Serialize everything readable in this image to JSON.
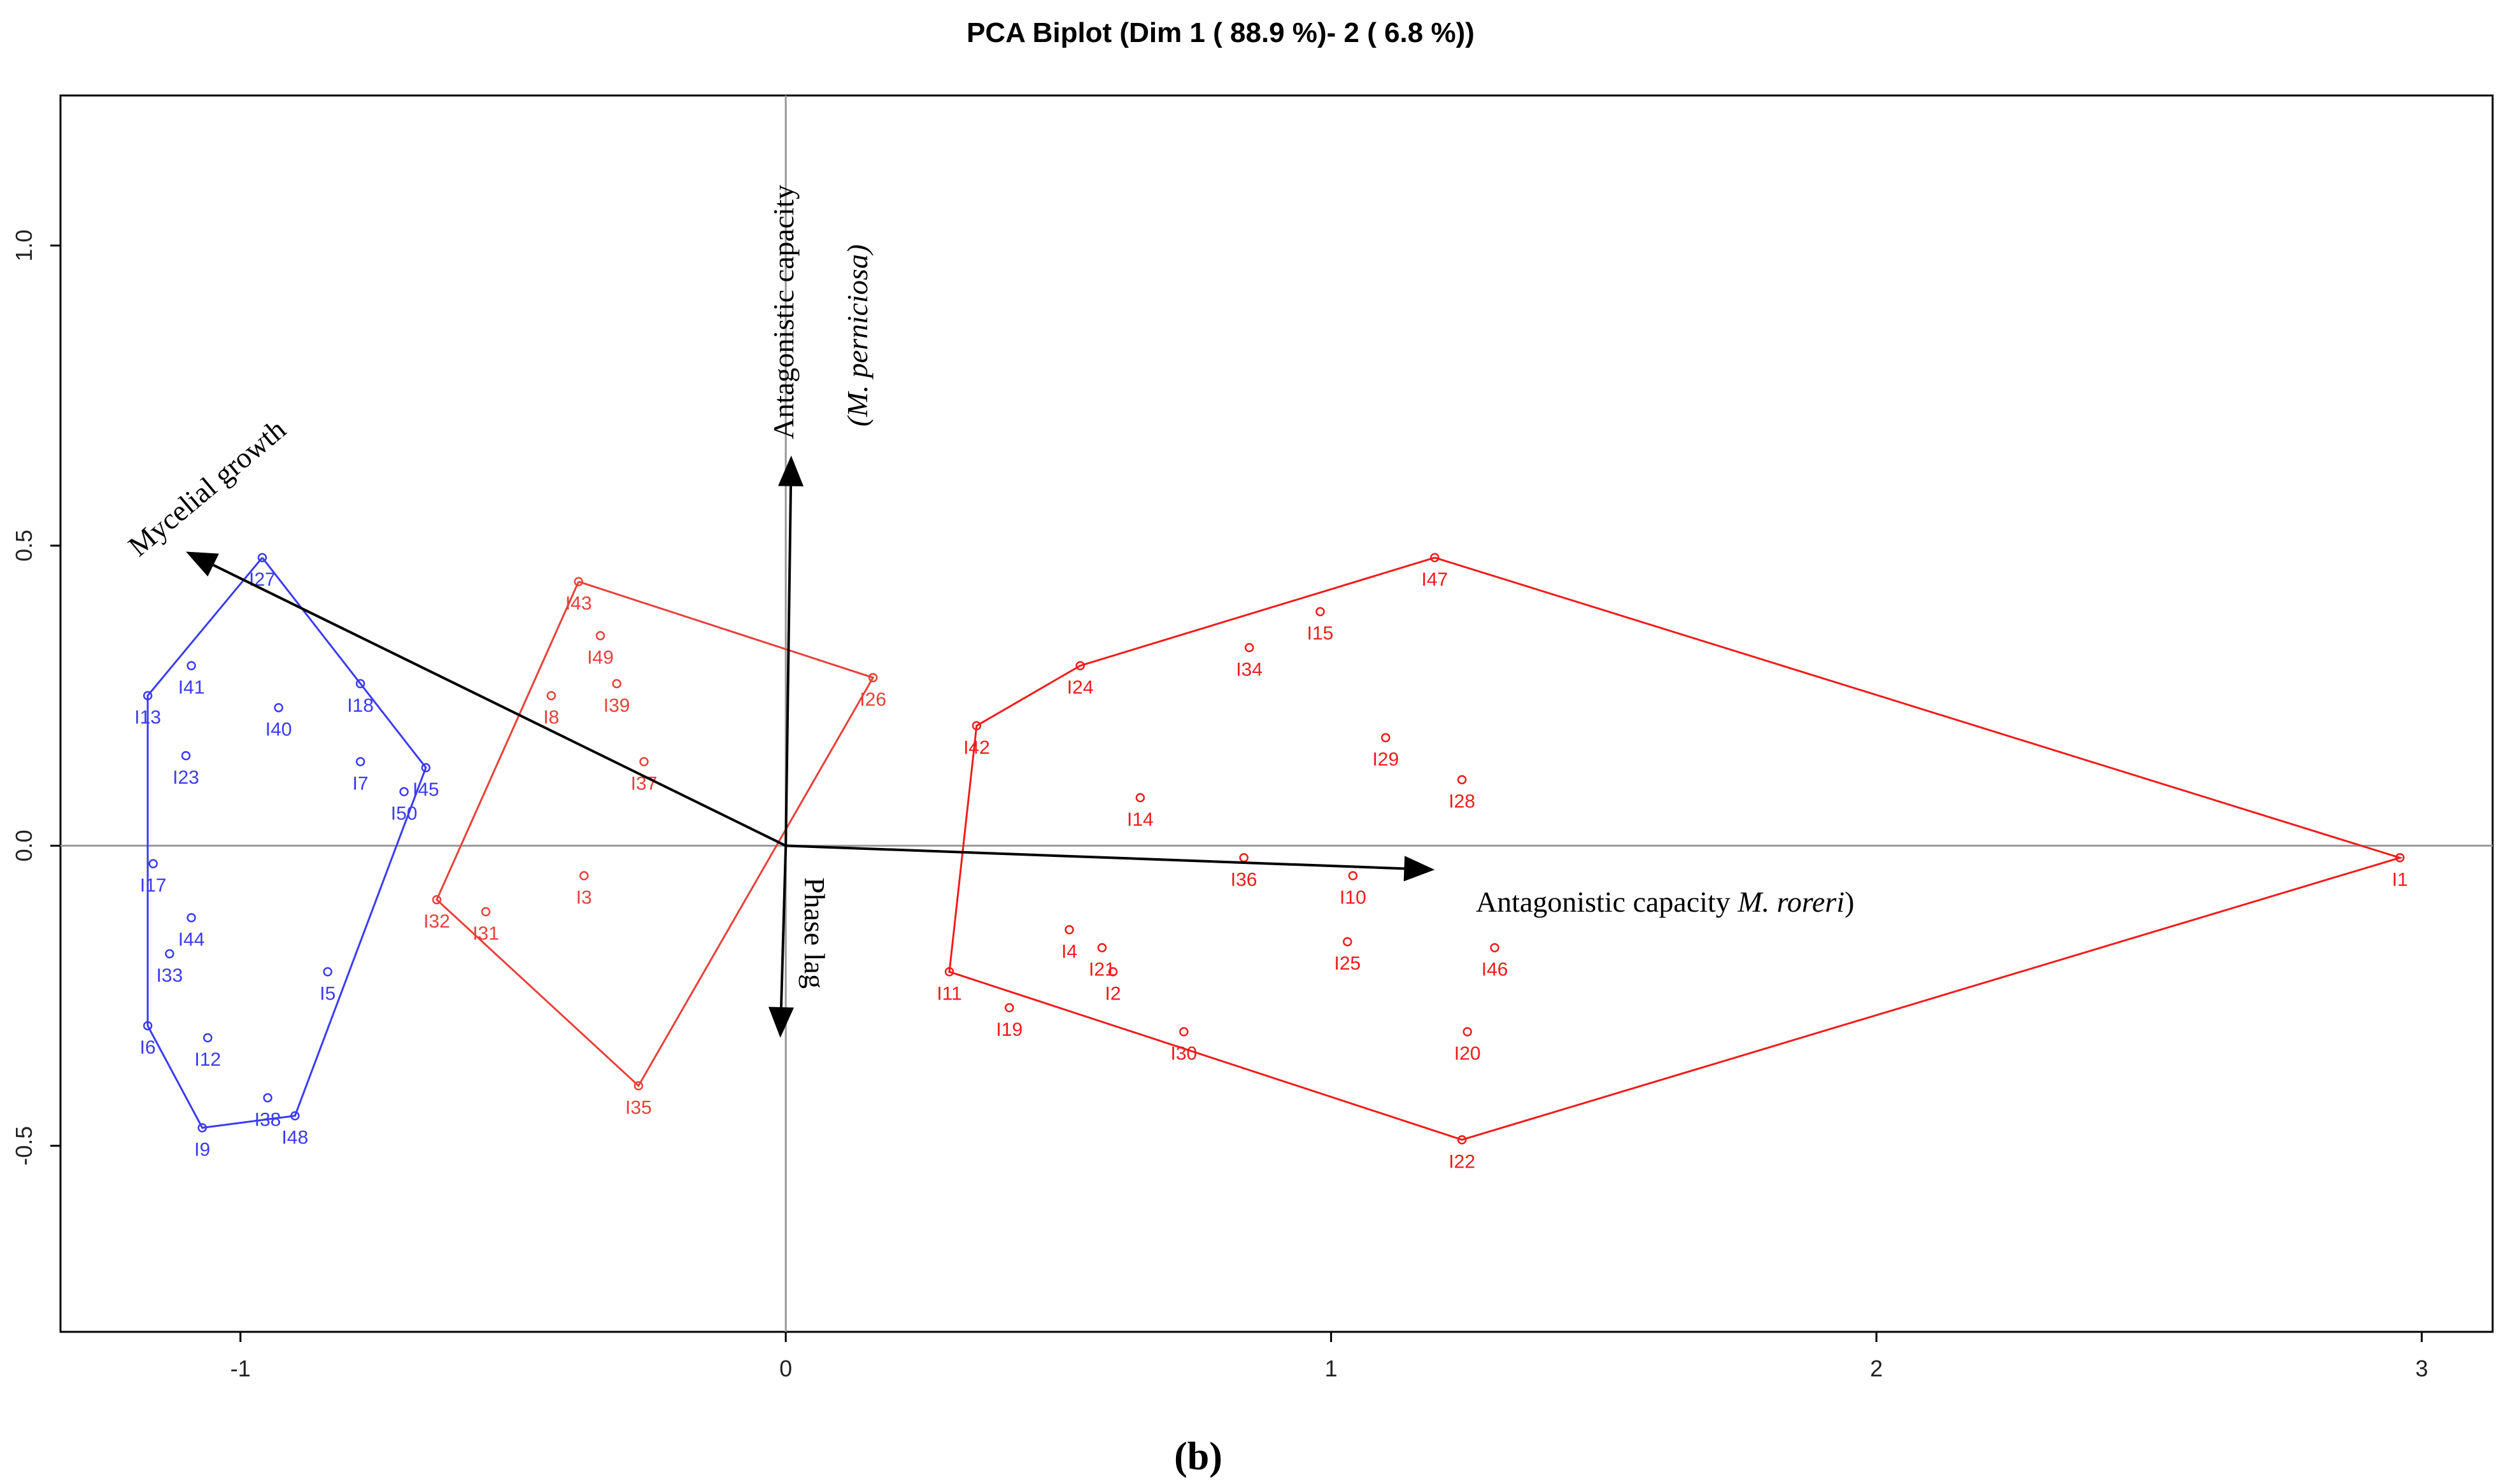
{
  "chart_data": {
    "type": "scatter",
    "title": "PCA Biplot (Dim 1 ( 88.9 %)- 2 ( 6.8 %))",
    "panel_label": "(b)",
    "xlabel": "",
    "ylabel": "",
    "xlim": [
      -1.33,
      3.13
    ],
    "ylim": [
      -0.81,
      1.25
    ],
    "x_ticks": [
      -1,
      0,
      1,
      2,
      3
    ],
    "y_ticks": [
      -0.5,
      0.0,
      0.5,
      1.0
    ],
    "x_tick_labels": [
      "-1",
      "0",
      "1",
      "2",
      "3"
    ],
    "y_tick_labels": [
      "-0.5",
      "0.0",
      "0.5",
      "1.0"
    ],
    "colors": {
      "group1": "#3b3bf2",
      "group2": "#e8403a",
      "group3": "#f21b1b",
      "axis_lines": "#999999",
      "arrows": "#000000"
    },
    "groups": [
      {
        "name": "group1",
        "points": [
          {
            "label": "I27",
            "x": -0.96,
            "y": 0.48
          },
          {
            "label": "I41",
            "x": -1.09,
            "y": 0.3
          },
          {
            "label": "I13",
            "x": -1.17,
            "y": 0.25
          },
          {
            "label": "I40",
            "x": -0.93,
            "y": 0.23
          },
          {
            "label": "I18",
            "x": -0.78,
            "y": 0.27
          },
          {
            "label": "I23",
            "x": -1.1,
            "y": 0.15
          },
          {
            "label": "I7",
            "x": -0.78,
            "y": 0.14
          },
          {
            "label": "I45",
            "x": -0.66,
            "y": 0.13
          },
          {
            "label": "I50",
            "x": -0.7,
            "y": 0.09
          },
          {
            "label": "I17",
            "x": -1.16,
            "y": -0.03
          },
          {
            "label": "I44",
            "x": -1.09,
            "y": -0.12
          },
          {
            "label": "I33",
            "x": -1.13,
            "y": -0.18
          },
          {
            "label": "I5",
            "x": -0.84,
            "y": -0.21
          },
          {
            "label": "I6",
            "x": -1.17,
            "y": -0.3
          },
          {
            "label": "I12",
            "x": -1.06,
            "y": -0.32
          },
          {
            "label": "I38",
            "x": -0.95,
            "y": -0.42
          },
          {
            "label": "I48",
            "x": -0.9,
            "y": -0.45
          },
          {
            "label": "I9",
            "x": -1.07,
            "y": -0.47
          }
        ],
        "hull": [
          "I27",
          "I45",
          "I48",
          "I9",
          "I6",
          "I13",
          "I27"
        ]
      },
      {
        "name": "group2",
        "points": [
          {
            "label": "I43",
            "x": -0.38,
            "y": 0.44
          },
          {
            "label": "I49",
            "x": -0.34,
            "y": 0.35
          },
          {
            "label": "I39",
            "x": -0.31,
            "y": 0.27
          },
          {
            "label": "I8",
            "x": -0.43,
            "y": 0.25
          },
          {
            "label": "I26",
            "x": 0.16,
            "y": 0.28
          },
          {
            "label": "I37",
            "x": -0.26,
            "y": 0.14
          },
          {
            "label": "I3",
            "x": -0.37,
            "y": -0.05
          },
          {
            "label": "I32",
            "x": -0.64,
            "y": -0.09
          },
          {
            "label": "I31",
            "x": -0.55,
            "y": -0.11
          },
          {
            "label": "I35",
            "x": -0.27,
            "y": -0.4
          }
        ],
        "hull": [
          "I43",
          "I26",
          "I35",
          "I32",
          "I43"
        ]
      },
      {
        "name": "group3",
        "points": [
          {
            "label": "I47",
            "x": 1.19,
            "y": 0.48
          },
          {
            "label": "I15",
            "x": 0.98,
            "y": 0.39
          },
          {
            "label": "I34",
            "x": 0.85,
            "y": 0.33
          },
          {
            "label": "I24",
            "x": 0.54,
            "y": 0.3
          },
          {
            "label": "I42",
            "x": 0.35,
            "y": 0.2
          },
          {
            "label": "I29",
            "x": 1.1,
            "y": 0.18
          },
          {
            "label": "I28",
            "x": 1.24,
            "y": 0.11
          },
          {
            "label": "I14",
            "x": 0.65,
            "y": 0.08
          },
          {
            "label": "I36",
            "x": 0.84,
            "y": -0.02
          },
          {
            "label": "I10",
            "x": 1.04,
            "y": -0.05
          },
          {
            "label": "I1",
            "x": 2.96,
            "y": -0.02
          },
          {
            "label": "I4",
            "x": 0.52,
            "y": -0.14
          },
          {
            "label": "I21",
            "x": 0.58,
            "y": -0.17
          },
          {
            "label": "I2",
            "x": 0.6,
            "y": -0.21
          },
          {
            "label": "I25",
            "x": 1.03,
            "y": -0.16
          },
          {
            "label": "I46",
            "x": 1.3,
            "y": -0.17
          },
          {
            "label": "I11",
            "x": 0.3,
            "y": -0.21
          },
          {
            "label": "I19",
            "x": 0.41,
            "y": -0.27
          },
          {
            "label": "I30",
            "x": 0.73,
            "y": -0.31
          },
          {
            "label": "I20",
            "x": 1.25,
            "y": -0.31
          },
          {
            "label": "I22",
            "x": 1.24,
            "y": -0.49
          }
        ],
        "hull": [
          "I47",
          "I1",
          "I22",
          "I11",
          "I42",
          "I24",
          "I47"
        ]
      }
    ],
    "variables": [
      {
        "name": "Antagonistic capacity (M. roreri)",
        "text": "Antagonistic capacity ",
        "italic": "M. roreri",
        "x": 1.19,
        "y": -0.04
      },
      {
        "name": "Antagonistic capacity (M. perniciosa)",
        "text": "Antagonistic capacity",
        "italic": "(M. perniciosa)",
        "x": 0.01,
        "y": 0.65
      },
      {
        "name": "Mycelial growth",
        "text": "Mycelial growth",
        "x": -1.1,
        "y": 0.49
      },
      {
        "name": "Phase lag",
        "text": "Phase lag",
        "x": -0.01,
        "y": -0.32
      }
    ]
  }
}
